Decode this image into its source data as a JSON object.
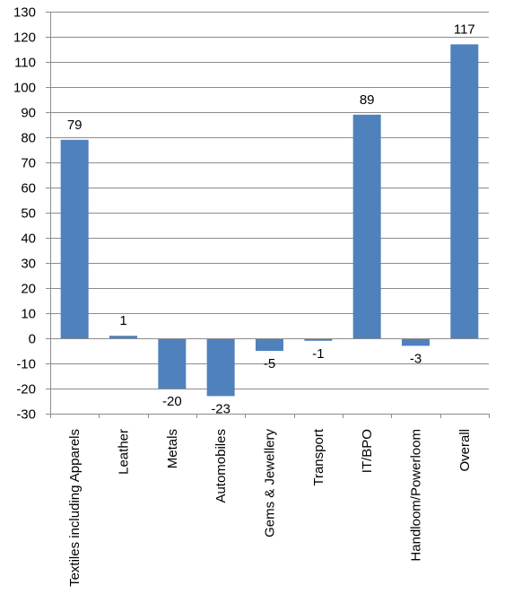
{
  "chart_data": {
    "type": "bar",
    "title": "",
    "xlabel": "",
    "ylabel": "",
    "categories": [
      "Textiles including Apparels",
      "Leather",
      "Metals",
      "Automobiles",
      "Gems & Jewellery",
      "Transport",
      "IT/BPO",
      "Handloom/Powerloom",
      "Overall"
    ],
    "values": [
      79,
      1,
      -20,
      -23,
      -5,
      -1,
      89,
      -3,
      117
    ],
    "data_labels": [
      "79",
      "1",
      "-20",
      "-23",
      "-5",
      "-1",
      "89",
      "-3",
      "117"
    ],
    "ylim": [
      -30,
      130
    ],
    "yticks": [
      -30,
      -20,
      -10,
      0,
      10,
      20,
      30,
      40,
      50,
      60,
      70,
      80,
      90,
      100,
      110,
      120,
      130
    ],
    "grid": true,
    "legend": "none",
    "bar_color": "#4f81bd"
  }
}
